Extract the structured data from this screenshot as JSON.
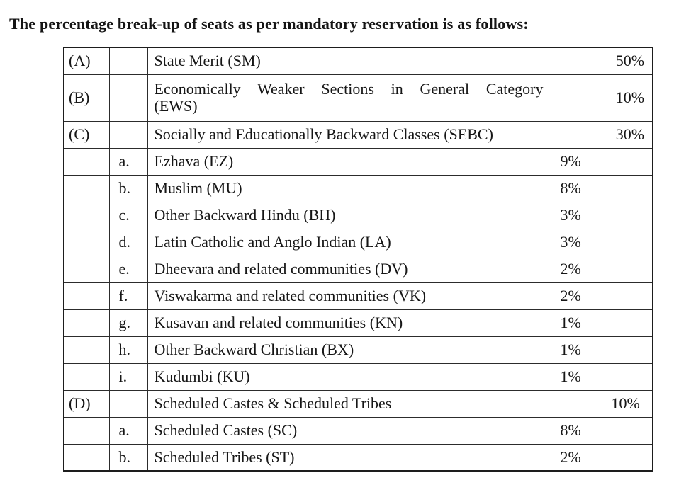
{
  "page": {
    "title": "The percentage break-up of seats as per mandatory reservation is as follows:"
  },
  "table": {
    "rows": [
      {
        "type": "main_merged",
        "label": "(A)",
        "desc": "State Merit (SM)",
        "pct": "50%"
      },
      {
        "type": "main_merged",
        "label": "(B)",
        "desc": "Economically Weaker Sections in General Category",
        "desc2": "(EWS)",
        "pct": "10%"
      },
      {
        "type": "main_merged",
        "label": "(C)",
        "desc": "Socially and Educationally Backward Classes (SEBC)",
        "pct": "30%"
      },
      {
        "type": "sub",
        "sub": "a.",
        "desc": "Ezhava (EZ)",
        "pct": "9%"
      },
      {
        "type": "sub",
        "sub": "b.",
        "desc": "Muslim (MU)",
        "pct": "8%"
      },
      {
        "type": "sub",
        "sub": "c.",
        "desc": "Other Backward Hindu (BH)",
        "pct": "3%"
      },
      {
        "type": "sub",
        "sub": "d.",
        "desc": "Latin Catholic and Anglo Indian (LA)",
        "pct": "3%"
      },
      {
        "type": "sub",
        "sub": "e.",
        "desc": "Dheevara and related communities (DV)",
        "pct": "2%"
      },
      {
        "type": "sub",
        "sub": "f.",
        "desc": "Viswakarma and related communities (VK)",
        "pct": "2%"
      },
      {
        "type": "sub",
        "sub": "g.",
        "desc": "Kusavan and related communities (KN)",
        "pct": "1%"
      },
      {
        "type": "sub",
        "sub": "h.",
        "desc": "Other Backward Christian (BX)",
        "pct": "1%"
      },
      {
        "type": "sub",
        "sub": "i.",
        "desc": "Kudumbi (KU)",
        "pct": "1%"
      },
      {
        "type": "main_split",
        "label": "(D)",
        "desc": "Scheduled Castes & Scheduled Tribes",
        "pct": "10%"
      },
      {
        "type": "sub",
        "sub": "a.",
        "desc": "Scheduled Castes (SC)",
        "pct": "8%"
      },
      {
        "type": "sub",
        "sub": "b.",
        "desc": "Scheduled Tribes (ST)",
        "pct": "2%"
      }
    ]
  }
}
